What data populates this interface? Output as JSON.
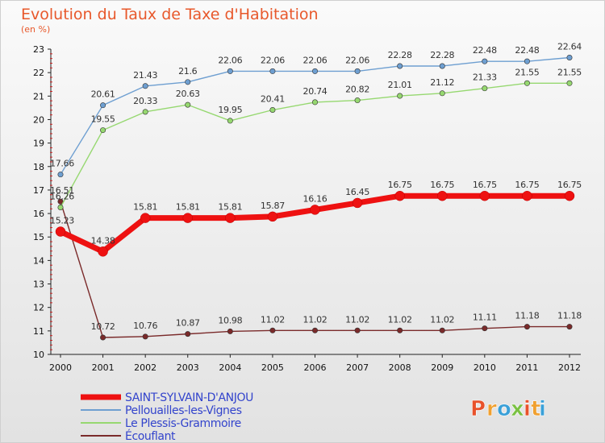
{
  "chart_data": {
    "type": "line",
    "title": "Evolution du Taux de Taxe d'Habitation",
    "unit_label": "(en %)",
    "xlabel": "",
    "ylabel": "",
    "ylim": [
      10,
      23
    ],
    "grid": false,
    "legend_position": "bottom-left",
    "categories": [
      "2000",
      "2001",
      "2002",
      "2003",
      "2004",
      "2005",
      "2006",
      "2007",
      "2008",
      "2009",
      "2010",
      "2011",
      "2012"
    ],
    "y_ticks": [
      "10",
      "11",
      "12",
      "13",
      "14",
      "15",
      "16",
      "17",
      "18",
      "19",
      "20",
      "21",
      "22",
      "23"
    ],
    "series": [
      {
        "name": "SAINT-SYLVAIN-D'ANJOU",
        "color": "#ee1111",
        "values": [
          15.23,
          14.38,
          15.81,
          15.81,
          15.81,
          15.87,
          16.16,
          16.45,
          16.75,
          16.75,
          16.75,
          16.75,
          16.75
        ],
        "labels": [
          "15.23",
          "14.38",
          "15.81",
          "15.81",
          "15.81",
          "15.87",
          "16.16",
          "16.45",
          "16.75",
          "16.75",
          "16.75",
          "16.75",
          "16.75"
        ]
      },
      {
        "name": "Pellouailles-les-Vignes",
        "color": "#6e9fd1",
        "values": [
          17.66,
          20.61,
          21.43,
          21.6,
          22.06,
          22.06,
          22.06,
          22.06,
          22.28,
          22.28,
          22.48,
          22.48,
          22.64
        ],
        "labels": [
          "17.66",
          "20.61",
          "21.43",
          "21.6",
          "22.06",
          "22.06",
          "22.06",
          "22.06",
          "22.28",
          "22.28",
          "22.48",
          "22.48",
          "22.64"
        ]
      },
      {
        "name": "Le Plessis-Grammoire",
        "color": "#96d870",
        "values": [
          16.26,
          19.55,
          20.33,
          20.63,
          19.95,
          20.41,
          20.74,
          20.82,
          21.01,
          21.12,
          21.33,
          21.55,
          21.55
        ],
        "labels": [
          "16.26",
          "19.55",
          "20.33",
          "20.63",
          "19.95",
          "20.41",
          "20.74",
          "20.82",
          "21.01",
          "21.12",
          "21.33",
          "21.55",
          "21.55"
        ]
      },
      {
        "name": "Écouflant",
        "color": "#7a2a2a",
        "values": [
          16.51,
          10.72,
          10.76,
          10.87,
          10.98,
          11.02,
          11.02,
          11.02,
          11.02,
          11.02,
          11.11,
          11.18,
          11.18
        ],
        "labels": [
          "16.51",
          "10.72",
          "10.76",
          "10.87",
          "10.98",
          "11.02",
          "11.02",
          "11.02",
          "11.02",
          "11.02",
          "11.11",
          "11.18",
          "11.18"
        ]
      }
    ]
  },
  "logo": {
    "letters": [
      "P",
      "r",
      "o",
      "x",
      "i",
      "t",
      "i"
    ],
    "colors": [
      "#e8522b",
      "#f0a030",
      "#3aa0d8",
      "#7ac142",
      "#e8522b",
      "#f0a030",
      "#3aa0d8"
    ]
  }
}
